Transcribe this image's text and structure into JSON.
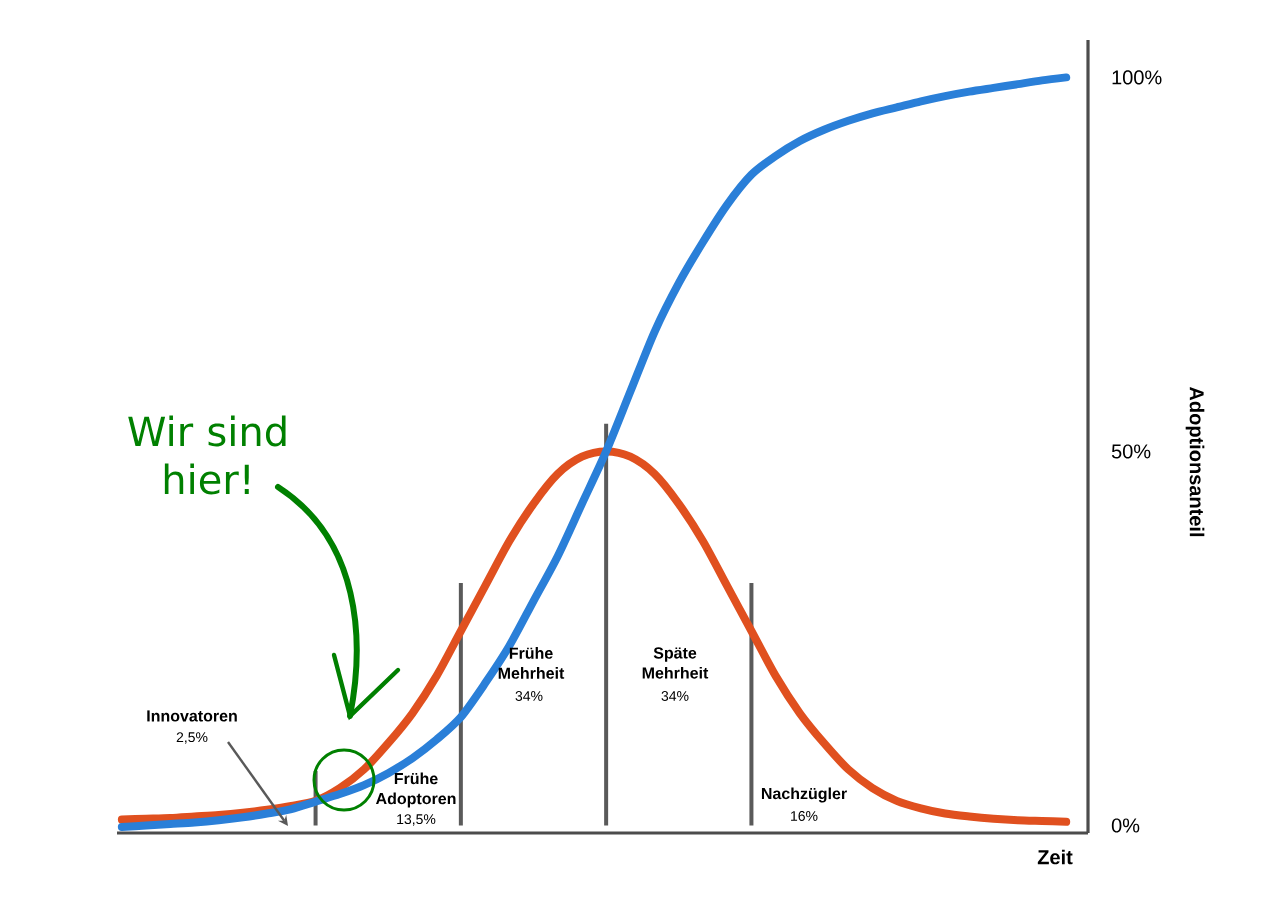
{
  "chart_data": {
    "type": "line",
    "xlabel": "Zeit",
    "ylabel": "Adoptionsanteil",
    "categories": [
      null,
      null,
      null,
      null,
      null,
      null,
      null,
      null,
      null,
      null,
      null,
      null,
      null,
      null,
      null,
      null,
      null,
      null,
      null,
      null,
      null,
      null,
      null,
      null,
      null,
      null,
      null,
      null,
      null,
      null,
      null,
      null,
      null,
      null,
      null,
      null,
      null,
      null,
      null,
      null
    ],
    "series": [
      {
        "type": "bar",
        "color": "#5a5a5a",
        "values": [
          null,
          null,
          null,
          null,
          null,
          null,
          null,
          null,
          7.3,
          null,
          null,
          null,
          null,
          null,
          32.4,
          null,
          null,
          null,
          null,
          null,
          53.7,
          null,
          null,
          null,
          null,
          null,
          32.4,
          null,
          null,
          null,
          null,
          null,
          null,
          null,
          null,
          null,
          null,
          null,
          null,
          null
        ]
      },
      {
        "color": "#e0501f",
        "values": [
          0.8,
          0.9,
          1.0,
          1.2,
          1.4,
          1.7,
          2.1,
          2.6,
          3.3,
          5.0,
          7.5,
          11,
          15,
          20,
          26,
          32,
          38,
          43,
          47,
          49.3,
          50,
          49.3,
          47,
          43,
          38,
          32,
          26,
          20,
          15,
          11,
          7.5,
          5.0,
          3.3,
          2.3,
          1.6,
          1.2,
          0.9,
          0.7,
          0.6,
          0.5
        ]
      },
      {
        "color": "#2a7fd8",
        "values": [
          -0.2,
          0.0,
          0.2,
          0.4,
          0.7,
          1.1,
          1.6,
          2.2,
          3.2,
          4.2,
          5.4,
          7.0,
          9.0,
          11.5,
          14.5,
          19,
          24,
          30,
          36,
          43,
          50,
          58,
          66,
          72.5,
          78,
          83,
          87,
          89.5,
          91.5,
          93,
          94.2,
          95.2,
          96,
          96.8,
          97.5,
          98.1,
          98.6,
          99.1,
          99.6,
          100
        ]
      }
    ],
    "ylim": [
      -1,
      105
    ],
    "yticks": [
      {
        "value": 0,
        "label": "0%"
      },
      {
        "value": 50,
        "label": "50%"
      },
      {
        "value": 100,
        "label": "100%"
      }
    ],
    "tick_labels": "y",
    "annotations": [
      "Innovatoren",
      "2,5%",
      "Frühe Adoptoren",
      "13,5%",
      "Frühe Mehrheit",
      "34%",
      "Späte Mehrheit",
      "34%",
      "Nachzügler",
      "16%",
      "Wir sind hier!"
    ]
  }
}
